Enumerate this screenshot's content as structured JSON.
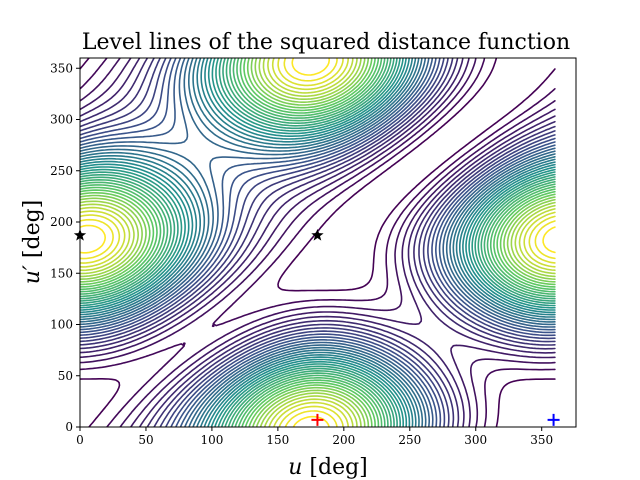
{
  "chart_data": {
    "type": "contour",
    "title": "Level lines of the squared distance function",
    "xlabel": "u [deg]",
    "ylabel": "u′ [deg]",
    "xlim": [
      0,
      376
    ],
    "ylim": [
      0,
      360
    ],
    "xticks": [
      0,
      50,
      100,
      150,
      200,
      250,
      300,
      350
    ],
    "yticks": [
      0,
      50,
      100,
      150,
      200,
      250,
      300,
      350
    ],
    "grid": false,
    "colormap": "viridis",
    "colormap_stops": [
      "#440154",
      "#3b528b",
      "#21918c",
      "#5ec962",
      "#fde725"
    ],
    "levels": 40,
    "markers": [
      {
        "name": "saddle-star-left",
        "shape": "star",
        "x": 0,
        "y": 187,
        "color": "#000000"
      },
      {
        "name": "saddle-star-center",
        "shape": "star",
        "x": 180,
        "y": 187,
        "color": "#000000"
      },
      {
        "name": "cross-red",
        "shape": "plus",
        "x": 180,
        "y": 7,
        "color": "#ff0000"
      },
      {
        "name": "cross-blue",
        "shape": "plus",
        "x": 359,
        "y": 7,
        "color": "#0000ff"
      }
    ],
    "data_extent": {
      "x": [
        0,
        360
      ],
      "y": [
        0,
        360
      ]
    }
  }
}
